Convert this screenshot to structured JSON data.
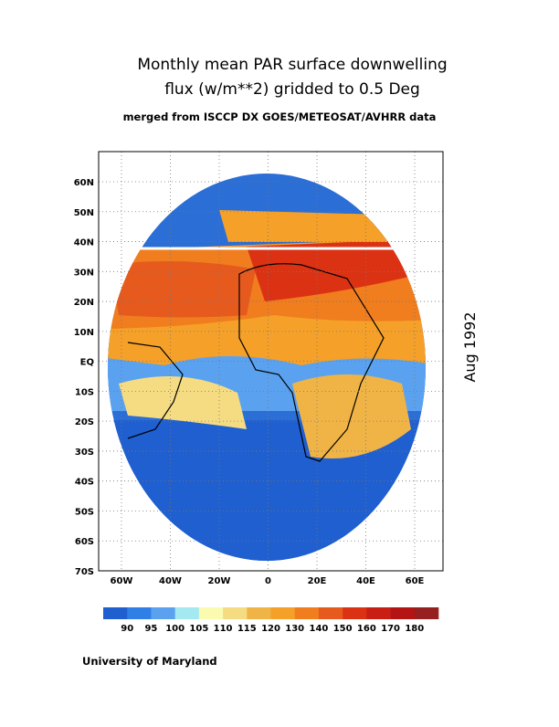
{
  "title": [
    "Monthly mean PAR surface downwelling",
    "flux (w/m**2) gridded to 0.5 Deg"
  ],
  "subtitle": "merged from ISCCP DX GOES/METEOSAT/AVHRR data",
  "side_label": "Aug 1992",
  "lat_labels": [
    "60N",
    "50N",
    "40N",
    "30N",
    "20N",
    "10N",
    "EQ",
    "10S",
    "20S",
    "30S",
    "40S",
    "50S",
    "60S",
    "70S"
  ],
  "lon_labels": [
    "60W",
    "40W",
    "20W",
    "0",
    "20E",
    "40E",
    "60E"
  ],
  "colorbar": {
    "labels": [
      "90",
      "95",
      "100",
      "105",
      "110",
      "115",
      "120",
      "130",
      "140",
      "150",
      "160",
      "170",
      "180"
    ],
    "colors": [
      "#1f5fd0",
      "#2f7fe6",
      "#5aa2f0",
      "#a4e8f2",
      "#fafab0",
      "#f5dc82",
      "#f0b446",
      "#f5a028",
      "#f07d1e",
      "#e65a1e",
      "#dc3214",
      "#c81e14",
      "#b41414",
      "#962020"
    ]
  },
  "credit": "University of Maryland"
}
